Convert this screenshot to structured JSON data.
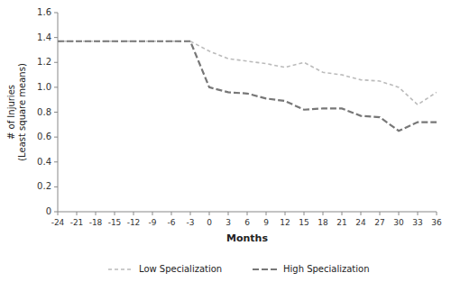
{
  "chart_data": {
    "type": "line",
    "xlabel": "Months",
    "ylabel": "# of Injuries\n(Least square means)",
    "x": [
      -24,
      -21,
      -18,
      -15,
      -12,
      -9,
      -6,
      -3,
      0,
      3,
      6,
      9,
      12,
      15,
      18,
      21,
      24,
      27,
      30,
      33,
      36
    ],
    "series": [
      {
        "name": "Low Specialization",
        "color": "#bbbbbb",
        "line_style": "dashed",
        "values": [
          1.37,
          1.37,
          1.37,
          1.37,
          1.37,
          1.37,
          1.37,
          1.37,
          1.29,
          1.23,
          1.21,
          1.19,
          1.16,
          1.2,
          1.12,
          1.1,
          1.06,
          1.05,
          1.0,
          0.86,
          0.96
        ]
      },
      {
        "name": "High Specialization",
        "color": "#777777",
        "line_style": "dashed",
        "values": [
          1.37,
          1.37,
          1.37,
          1.37,
          1.37,
          1.37,
          1.37,
          1.37,
          1.0,
          0.96,
          0.95,
          0.91,
          0.89,
          0.82,
          0.83,
          0.83,
          0.77,
          0.76,
          0.65,
          0.72,
          0.72
        ]
      }
    ],
    "xlim": [
      -24,
      36
    ],
    "xticks": [
      -24,
      -21,
      -18,
      -15,
      -12,
      -9,
      -6,
      -3,
      0,
      3,
      6,
      9,
      12,
      15,
      18,
      21,
      24,
      27,
      30,
      33,
      36
    ],
    "ylim": [
      0,
      1.6
    ],
    "yticks": [
      0,
      0.2,
      0.4,
      0.6,
      0.8,
      {
        "value": 1,
        "label": "1.0"
      },
      1.2,
      1.4,
      1.6
    ],
    "grid": false,
    "legend": "bottom"
  }
}
